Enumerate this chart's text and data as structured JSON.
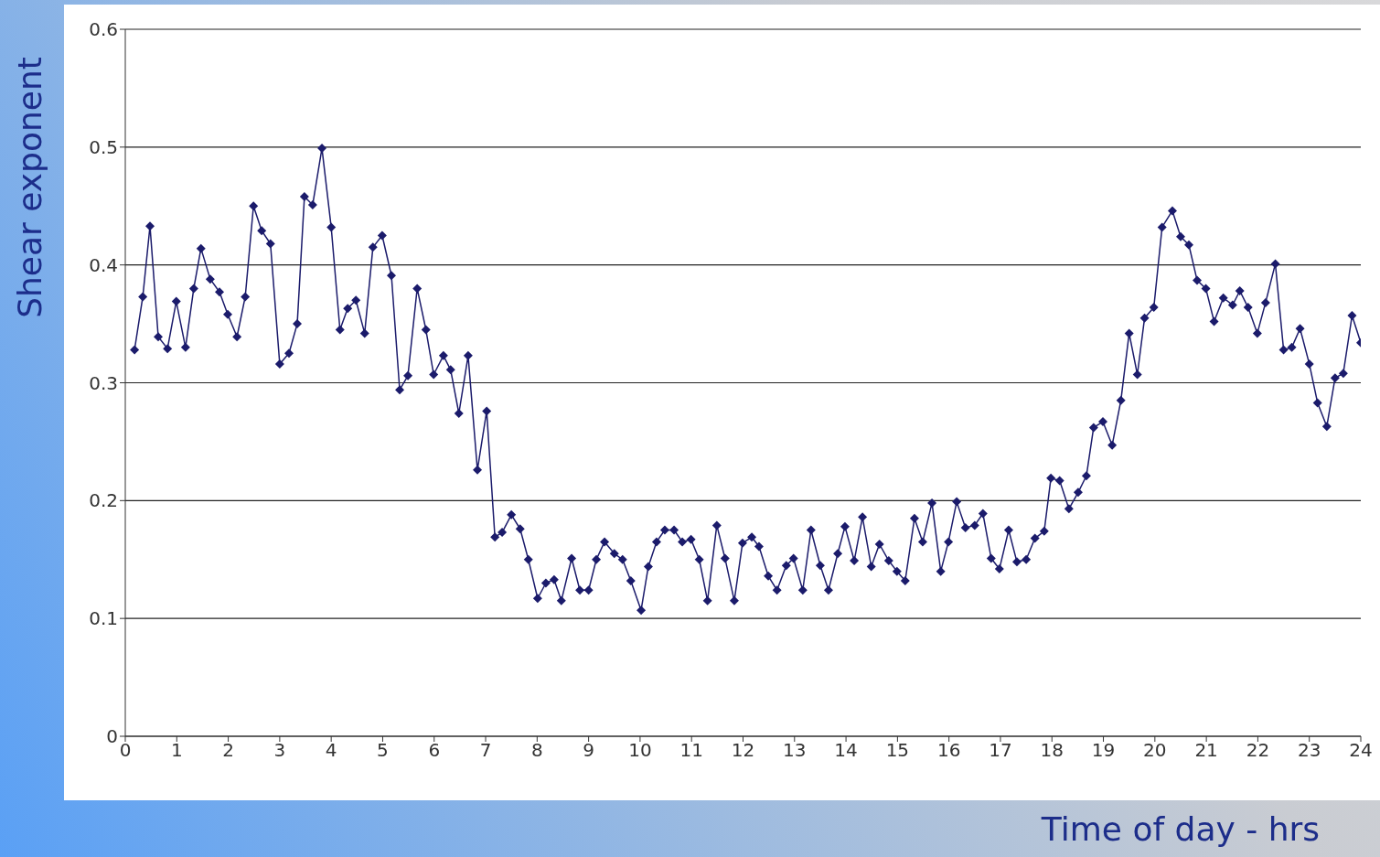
{
  "chart_data": {
    "type": "line",
    "xlabel": "Time of day - hrs",
    "ylabel": "Shear exponent",
    "x": [
      0.18,
      0.34,
      0.48,
      0.64,
      0.82,
      0.99,
      1.17,
      1.33,
      1.47,
      1.65,
      1.83,
      1.99,
      2.17,
      2.33,
      2.49,
      2.65,
      2.82,
      3.0,
      3.18,
      3.34,
      3.48,
      3.64,
      3.82,
      4.0,
      4.17,
      4.32,
      4.48,
      4.65,
      4.81,
      4.99,
      5.17,
      5.33,
      5.49,
      5.67,
      5.84,
      5.99,
      6.18,
      6.32,
      6.48,
      6.66,
      6.84,
      7.02,
      7.18,
      7.32,
      7.5,
      7.67,
      7.83,
      8.01,
      8.17,
      8.33,
      8.47,
      8.67,
      8.83,
      9.0,
      9.15,
      9.31,
      9.5,
      9.66,
      9.82,
      10.02,
      10.16,
      10.32,
      10.48,
      10.66,
      10.82,
      10.99,
      11.15,
      11.31,
      11.49,
      11.65,
      11.83,
      11.99,
      12.17,
      12.31,
      12.49,
      12.66,
      12.84,
      12.98,
      13.16,
      13.32,
      13.5,
      13.66,
      13.84,
      13.98,
      14.16,
      14.32,
      14.49,
      14.65,
      14.83,
      14.99,
      15.15,
      15.33,
      15.49,
      15.67,
      15.84,
      15.99,
      16.15,
      16.32,
      16.5,
      16.66,
      16.82,
      16.98,
      17.16,
      17.32,
      17.5,
      17.67,
      17.85,
      17.98,
      18.15,
      18.33,
      18.51,
      18.67,
      18.81,
      18.99,
      19.17,
      19.34,
      19.5,
      19.66,
      19.8,
      19.98,
      20.14,
      20.34,
      20.5,
      20.66,
      20.82,
      20.99,
      21.15,
      21.33,
      21.51,
      21.65,
      21.81,
      21.99,
      22.15,
      22.34,
      22.5,
      22.66,
      22.82,
      23.0,
      23.16,
      23.34,
      23.5,
      23.66,
      23.83,
      24.0
    ],
    "series": [
      {
        "color": "#1b1b6b",
        "values": [
          0.328,
          0.373,
          0.433,
          0.339,
          0.329,
          0.369,
          0.33,
          0.38,
          0.414,
          0.388,
          0.377,
          0.358,
          0.339,
          0.373,
          0.45,
          0.429,
          0.418,
          0.316,
          0.325,
          0.35,
          0.458,
          0.451,
          0.499,
          0.432,
          0.345,
          0.363,
          0.37,
          0.342,
          0.415,
          0.425,
          0.391,
          0.294,
          0.306,
          0.38,
          0.345,
          0.307,
          0.323,
          0.311,
          0.274,
          0.323,
          0.226,
          0.276,
          0.169,
          0.173,
          0.188,
          0.176,
          0.15,
          0.117,
          0.13,
          0.133,
          0.115,
          0.151,
          0.124,
          0.124,
          0.15,
          0.165,
          0.155,
          0.15,
          0.132,
          0.107,
          0.144,
          0.165,
          0.175,
          0.175,
          0.165,
          0.167,
          0.15,
          0.115,
          0.179,
          0.151,
          0.115,
          0.164,
          0.169,
          0.161,
          0.136,
          0.124,
          0.145,
          0.151,
          0.124,
          0.175,
          0.145,
          0.124,
          0.155,
          0.178,
          0.149,
          0.186,
          0.144,
          0.163,
          0.149,
          0.14,
          0.132,
          0.185,
          0.165,
          0.198,
          0.14,
          0.165,
          0.199,
          0.177,
          0.179,
          0.189,
          0.151,
          0.142,
          0.175,
          0.148,
          0.15,
          0.168,
          0.174,
          0.219,
          0.217,
          0.193,
          0.207,
          0.221,
          0.262,
          0.267,
          0.247,
          0.285,
          0.342,
          0.307,
          0.355,
          0.364,
          0.432,
          0.446,
          0.424,
          0.417,
          0.387,
          0.38,
          0.352,
          0.372,
          0.366,
          0.378,
          0.364,
          0.342,
          0.368,
          0.401,
          0.328,
          0.33,
          0.346,
          0.316,
          0.283,
          0.263,
          0.304,
          0.308,
          0.357,
          0.334
        ]
      }
    ],
    "xlim": [
      0,
      24
    ],
    "xticks": [
      0,
      1,
      2,
      3,
      4,
      5,
      6,
      7,
      8,
      9,
      10,
      11,
      12,
      13,
      14,
      15,
      16,
      17,
      18,
      19,
      20,
      21,
      22,
      23,
      24
    ],
    "ylim": [
      0,
      0.6
    ],
    "yticks": [
      0,
      0.1,
      0.2,
      0.3,
      0.4,
      0.5,
      0.6
    ],
    "grid": "y",
    "legend": false,
    "marker": "diamond",
    "line_style": "solid"
  }
}
